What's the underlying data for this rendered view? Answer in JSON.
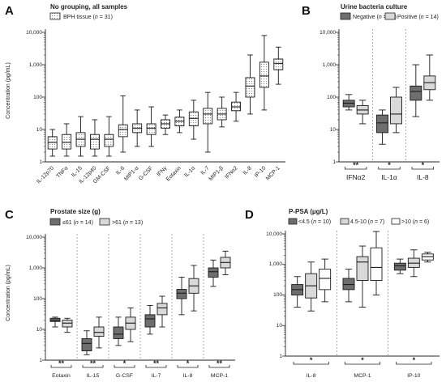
{
  "patterns": {
    "light": "#d9d9d9",
    "dark": "#6e6e6e",
    "white": "#ffffff",
    "dots": "dots"
  },
  "panels": {
    "A": {
      "letter": "A",
      "title": "No grouping, all samples",
      "legend": [
        {
          "fill": "dots",
          "label": "BPH tissue (",
          "n": "n",
          "rest": " = 31)"
        }
      ],
      "ylabel": "Concentration (pg/mL)",
      "yticks": [
        "10,000",
        "1,000",
        "100",
        "10",
        "1"
      ]
    },
    "B": {
      "letter": "B",
      "title": "Urine bacteria culture",
      "legend": [
        {
          "fill": "dark",
          "label": "Negative (",
          "n": "n",
          "rest": " = 15)"
        },
        {
          "fill": "light",
          "label": "Positive (",
          "n": "n",
          "rest": " = 14)"
        }
      ],
      "yticks": [
        "10,000",
        "1,000",
        "100",
        "10",
        "1"
      ],
      "sig": [
        "**",
        "*",
        "*"
      ]
    },
    "C": {
      "letter": "C",
      "title": "Prostate size (g)",
      "legend": [
        {
          "fill": "dark",
          "label": "≤61 (",
          "n": "n",
          "rest": " = 14)"
        },
        {
          "fill": "light",
          "label": ">61 (",
          "n": "n",
          "rest": " = 13)"
        }
      ],
      "ylabel": "Concentration (pg/mL)",
      "yticks": [
        "10,000",
        "1,000",
        "100",
        "10",
        "1"
      ],
      "sig": [
        "**",
        "**",
        "*",
        "**",
        "*",
        "**"
      ]
    },
    "D": {
      "letter": "D",
      "title": "P-PSA (µg/L)",
      "legend": [
        {
          "fill": "dark",
          "label": "<4.5 (",
          "n": "n",
          "rest": " = 10)"
        },
        {
          "fill": "light",
          "label": "4.5-10 (",
          "n": "n",
          "rest": " = 7)"
        },
        {
          "fill": "white",
          "label": ">10 (",
          "n": "n",
          "rest": " = 6)"
        }
      ],
      "yticks": [
        "10,000",
        "1,000",
        "100",
        "10",
        "1"
      ],
      "sig": [
        "*",
        "*",
        "*"
      ]
    }
  },
  "chart_data": [
    {
      "id": "A",
      "type": "box",
      "title": "No grouping, all samples",
      "ylabel": "Concentration (pg/mL)",
      "yscale": "log",
      "ylim": [
        1,
        10000
      ],
      "series": [
        {
          "name": "BPH tissue (n = 31)",
          "fill": "dots"
        }
      ],
      "categories": [
        "IL-12p70",
        "TNFα",
        "IL-15",
        "IL-12p40",
        "GM-CSF",
        "IL-6",
        "MIP1-α",
        "G-CSF",
        "IFNγ",
        "Eotaxin",
        "IL-1α",
        "IL-7",
        "MIP1-β",
        "IFNα2",
        "IL-8",
        "IP-10",
        "MCP-1"
      ],
      "boxes": [
        [
          [
            1.5,
            2.5,
            4,
            6,
            10
          ]
        ],
        [
          [
            1.5,
            2.5,
            4,
            7,
            15
          ]
        ],
        [
          [
            1.5,
            3,
            5,
            8,
            25
          ]
        ],
        [
          [
            1.5,
            2.5,
            5,
            7,
            20
          ]
        ],
        [
          [
            1.5,
            3,
            5,
            7,
            25
          ]
        ],
        [
          [
            2,
            6,
            10,
            14,
            110
          ]
        ],
        [
          [
            3,
            8,
            11,
            15,
            40
          ]
        ],
        [
          [
            3,
            7,
            11,
            15,
            50
          ]
        ],
        [
          [
            7,
            11,
            15,
            20,
            28
          ]
        ],
        [
          [
            8,
            13,
            18,
            24,
            40
          ]
        ],
        [
          [
            5,
            13,
            22,
            35,
            80
          ]
        ],
        [
          [
            2,
            15,
            30,
            45,
            140
          ]
        ],
        [
          [
            12,
            20,
            30,
            45,
            100
          ]
        ],
        [
          [
            18,
            38,
            50,
            70,
            140
          ]
        ],
        [
          [
            30,
            100,
            220,
            400,
            2000
          ]
        ],
        [
          [
            40,
            200,
            450,
            1200,
            8000
          ]
        ],
        [
          [
            250,
            700,
            1100,
            1500,
            3500
          ]
        ]
      ]
    },
    {
      "id": "B",
      "type": "box",
      "title": "Urine bacteria culture",
      "yscale": "log",
      "ylim": [
        1,
        10000
      ],
      "series": [
        {
          "name": "Negative (n = 15)",
          "fill": "dark"
        },
        {
          "name": "Positive (n = 14)",
          "fill": "light"
        }
      ],
      "categories": [
        "IFNα2",
        "IL-1α",
        "IL-8"
      ],
      "boxes": [
        [
          [
            40,
            50,
            65,
            80,
            120
          ],
          [
            15,
            30,
            40,
            55,
            80
          ]
        ],
        [
          [
            3.5,
            8,
            16,
            28,
            40
          ],
          [
            8,
            15,
            30,
            100,
            200
          ]
        ],
        [
          [
            25,
            80,
            150,
            220,
            1000
          ],
          [
            80,
            170,
            280,
            450,
            2000
          ]
        ]
      ],
      "significance": [
        "**",
        "*",
        "*"
      ]
    },
    {
      "id": "C",
      "type": "box",
      "title": "Prostate size (g)",
      "ylabel": "Concentration (pg/mL)",
      "yscale": "log",
      "ylim": [
        1,
        10000
      ],
      "series": [
        {
          "name": "≤61 (n = 14)",
          "fill": "dark"
        },
        {
          "name": ">61 (n = 13)",
          "fill": "light"
        }
      ],
      "categories": [
        "Eotaxin",
        "IL-15",
        "G-CSF",
        "IL-7",
        "IL-8",
        "MCP-1"
      ],
      "boxes": [
        [
          [
            12,
            18,
            20,
            23,
            25
          ],
          [
            8,
            12,
            16,
            20,
            23
          ]
        ],
        [
          [
            1.5,
            2,
            3.5,
            5,
            9
          ],
          [
            2.5,
            6,
            8,
            12,
            25
          ]
        ],
        [
          [
            3,
            5,
            7,
            12,
            25
          ],
          [
            4,
            10,
            16,
            25,
            50
          ]
        ],
        [
          [
            7,
            12,
            22,
            30,
            60
          ],
          [
            12,
            30,
            50,
            70,
            120
          ]
        ],
        [
          [
            30,
            100,
            150,
            200,
            500
          ],
          [
            40,
            150,
            260,
            450,
            1200
          ]
        ],
        [
          [
            250,
            500,
            750,
            1000,
            1800
          ],
          [
            600,
            1000,
            1500,
            2200,
            3500
          ]
        ]
      ],
      "significance": [
        "**",
        "**",
        "*",
        "**",
        "*",
        "**"
      ]
    },
    {
      "id": "D",
      "type": "box",
      "title": "P-PSA (µg/L)",
      "yscale": "log",
      "ylim": [
        1,
        10000
      ],
      "series": [
        {
          "name": "<4.5 (n = 10)",
          "fill": "dark"
        },
        {
          "name": "4.5-10 (n = 7)",
          "fill": "light"
        },
        {
          "name": ">10 (n = 6)",
          "fill": "white"
        }
      ],
      "categories": [
        "IL-8",
        "MCP-1",
        "IP-10"
      ],
      "boxes": [
        [
          [
            40,
            100,
            150,
            220,
            400
          ],
          [
            30,
            80,
            200,
            500,
            1200
          ],
          [
            60,
            150,
            350,
            700,
            1500
          ]
        ],
        [
          [
            60,
            150,
            220,
            350,
            700
          ],
          [
            40,
            300,
            1200,
            1800,
            4000
          ],
          [
            100,
            300,
            800,
            3500,
            12000
          ]
        ],
        [
          [
            500,
            650,
            900,
            1100,
            1500
          ],
          [
            400,
            800,
            1100,
            1600,
            3000
          ],
          [
            1200,
            1400,
            1800,
            2200,
            2500
          ]
        ]
      ],
      "significance": [
        "*",
        "*",
        "*"
      ]
    }
  ]
}
